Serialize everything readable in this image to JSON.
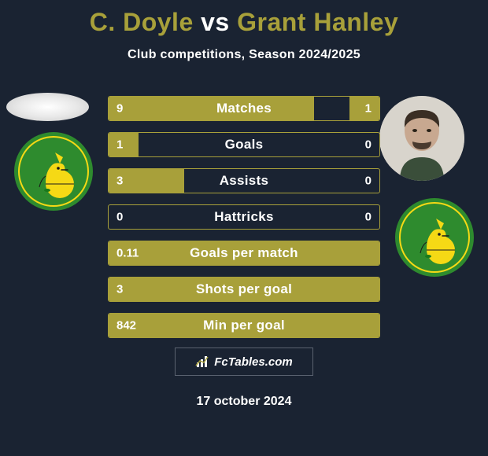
{
  "title": {
    "player1": "C. Doyle",
    "vs": "vs",
    "player2": "Grant Hanley"
  },
  "subtitle": "Club competitions, Season 2024/2025",
  "colors": {
    "background": "#1a2332",
    "accent": "#a8a03a",
    "text": "#ffffff",
    "crest_green": "#2e8b2e",
    "crest_yellow": "#f5d915"
  },
  "stats": [
    {
      "label": "Matches",
      "left_value": "9",
      "right_value": "1",
      "left_pct": 76,
      "right_pct": 11
    },
    {
      "label": "Goals",
      "left_value": "1",
      "right_value": "0",
      "left_pct": 11,
      "right_pct": 0
    },
    {
      "label": "Assists",
      "left_value": "3",
      "right_value": "0",
      "left_pct": 28,
      "right_pct": 0
    },
    {
      "label": "Hattricks",
      "left_value": "0",
      "right_value": "0",
      "left_pct": 0,
      "right_pct": 0
    },
    {
      "label": "Goals per match",
      "left_value": "0.11",
      "right_value": "",
      "left_pct": 100,
      "right_pct": 0
    },
    {
      "label": "Shots per goal",
      "left_value": "3",
      "right_value": "",
      "left_pct": 100,
      "right_pct": 0
    },
    {
      "label": "Min per goal",
      "left_value": "842",
      "right_value": "",
      "left_pct": 100,
      "right_pct": 0
    }
  ],
  "footer": {
    "brand": "FcTables.com",
    "date": "17 october 2024"
  }
}
